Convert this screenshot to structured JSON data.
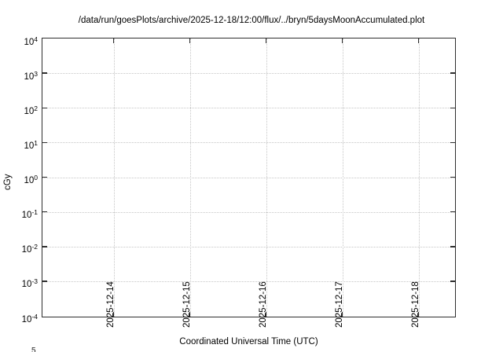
{
  "chart_data": {
    "type": "line",
    "title": "/data/run/goesPlots/archive/2025-12-18/12:00/flux/../bryn/5daysMoonAccumulated.plot",
    "xlabel": "Coordinated Universal Time (UTC)",
    "ylabel": "cGy",
    "x_axis": {
      "tick_labels": [
        "2025-12-14",
        "2025-12-15",
        "2025-12-16",
        "2025-12-17",
        "2025-12-18"
      ],
      "tick_label_rotation_deg": -90
    },
    "y_axis": {
      "scale": "log",
      "tick_base": "10",
      "tick_exponents": [
        "4",
        "3",
        "2",
        "1",
        "0",
        "-1",
        "-2",
        "-3",
        "-4"
      ],
      "range_low": "1e-4",
      "range_high": "1e4"
    },
    "series": [],
    "grid": "dotted major gridlines, horizontal and vertical",
    "legend": "none"
  },
  "partial_next_chart_label": "5",
  "colors": {
    "background": "#ffffff",
    "axis": "#2e2e2e",
    "grid": "#c6c6c6",
    "text": "#000000"
  }
}
